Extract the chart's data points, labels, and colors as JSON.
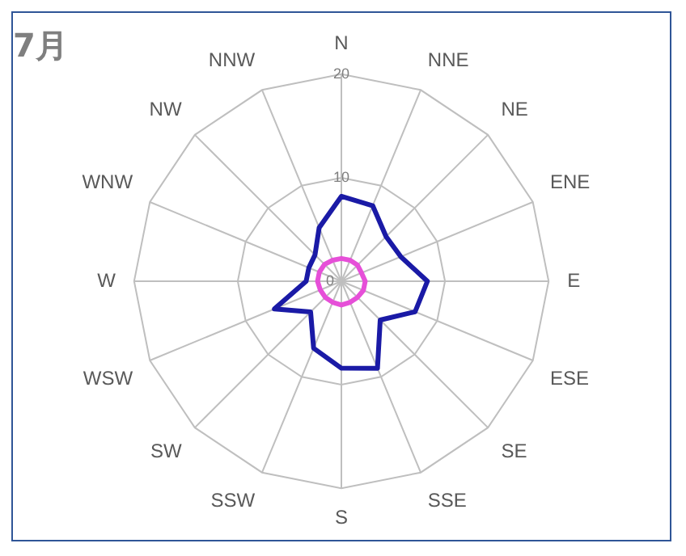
{
  "chart_data": {
    "type": "radar",
    "title": "7月",
    "categories": [
      "N",
      "NNE",
      "NE",
      "ENE",
      "E",
      "ESE",
      "SE",
      "SSE",
      "S",
      "SSW",
      "SW",
      "WSW",
      "W",
      "WNW",
      "NW",
      "NNW"
    ],
    "series": [
      {
        "color": "#1a1aa6",
        "values": [
          8.2,
          7.9,
          6.1,
          6.2,
          8.3,
          7.7,
          5.3,
          9.1,
          8.4,
          7.0,
          4.2,
          7.0,
          3.4,
          3.4,
          3.6,
          5.6
        ]
      },
      {
        "color": "#e64fd8",
        "values": [
          2.2,
          2.2,
          2.2,
          2.1,
          2.3,
          2.3,
          2.2,
          2.2,
          2.3,
          2.2,
          2.2,
          2.2,
          2.3,
          2.3,
          2.3,
          2.2
        ]
      }
    ],
    "ylim": [
      0,
      20
    ],
    "yticks": [
      0,
      10,
      20
    ],
    "grid": true,
    "legend": false,
    "marker": "none",
    "line_style": "solid"
  }
}
